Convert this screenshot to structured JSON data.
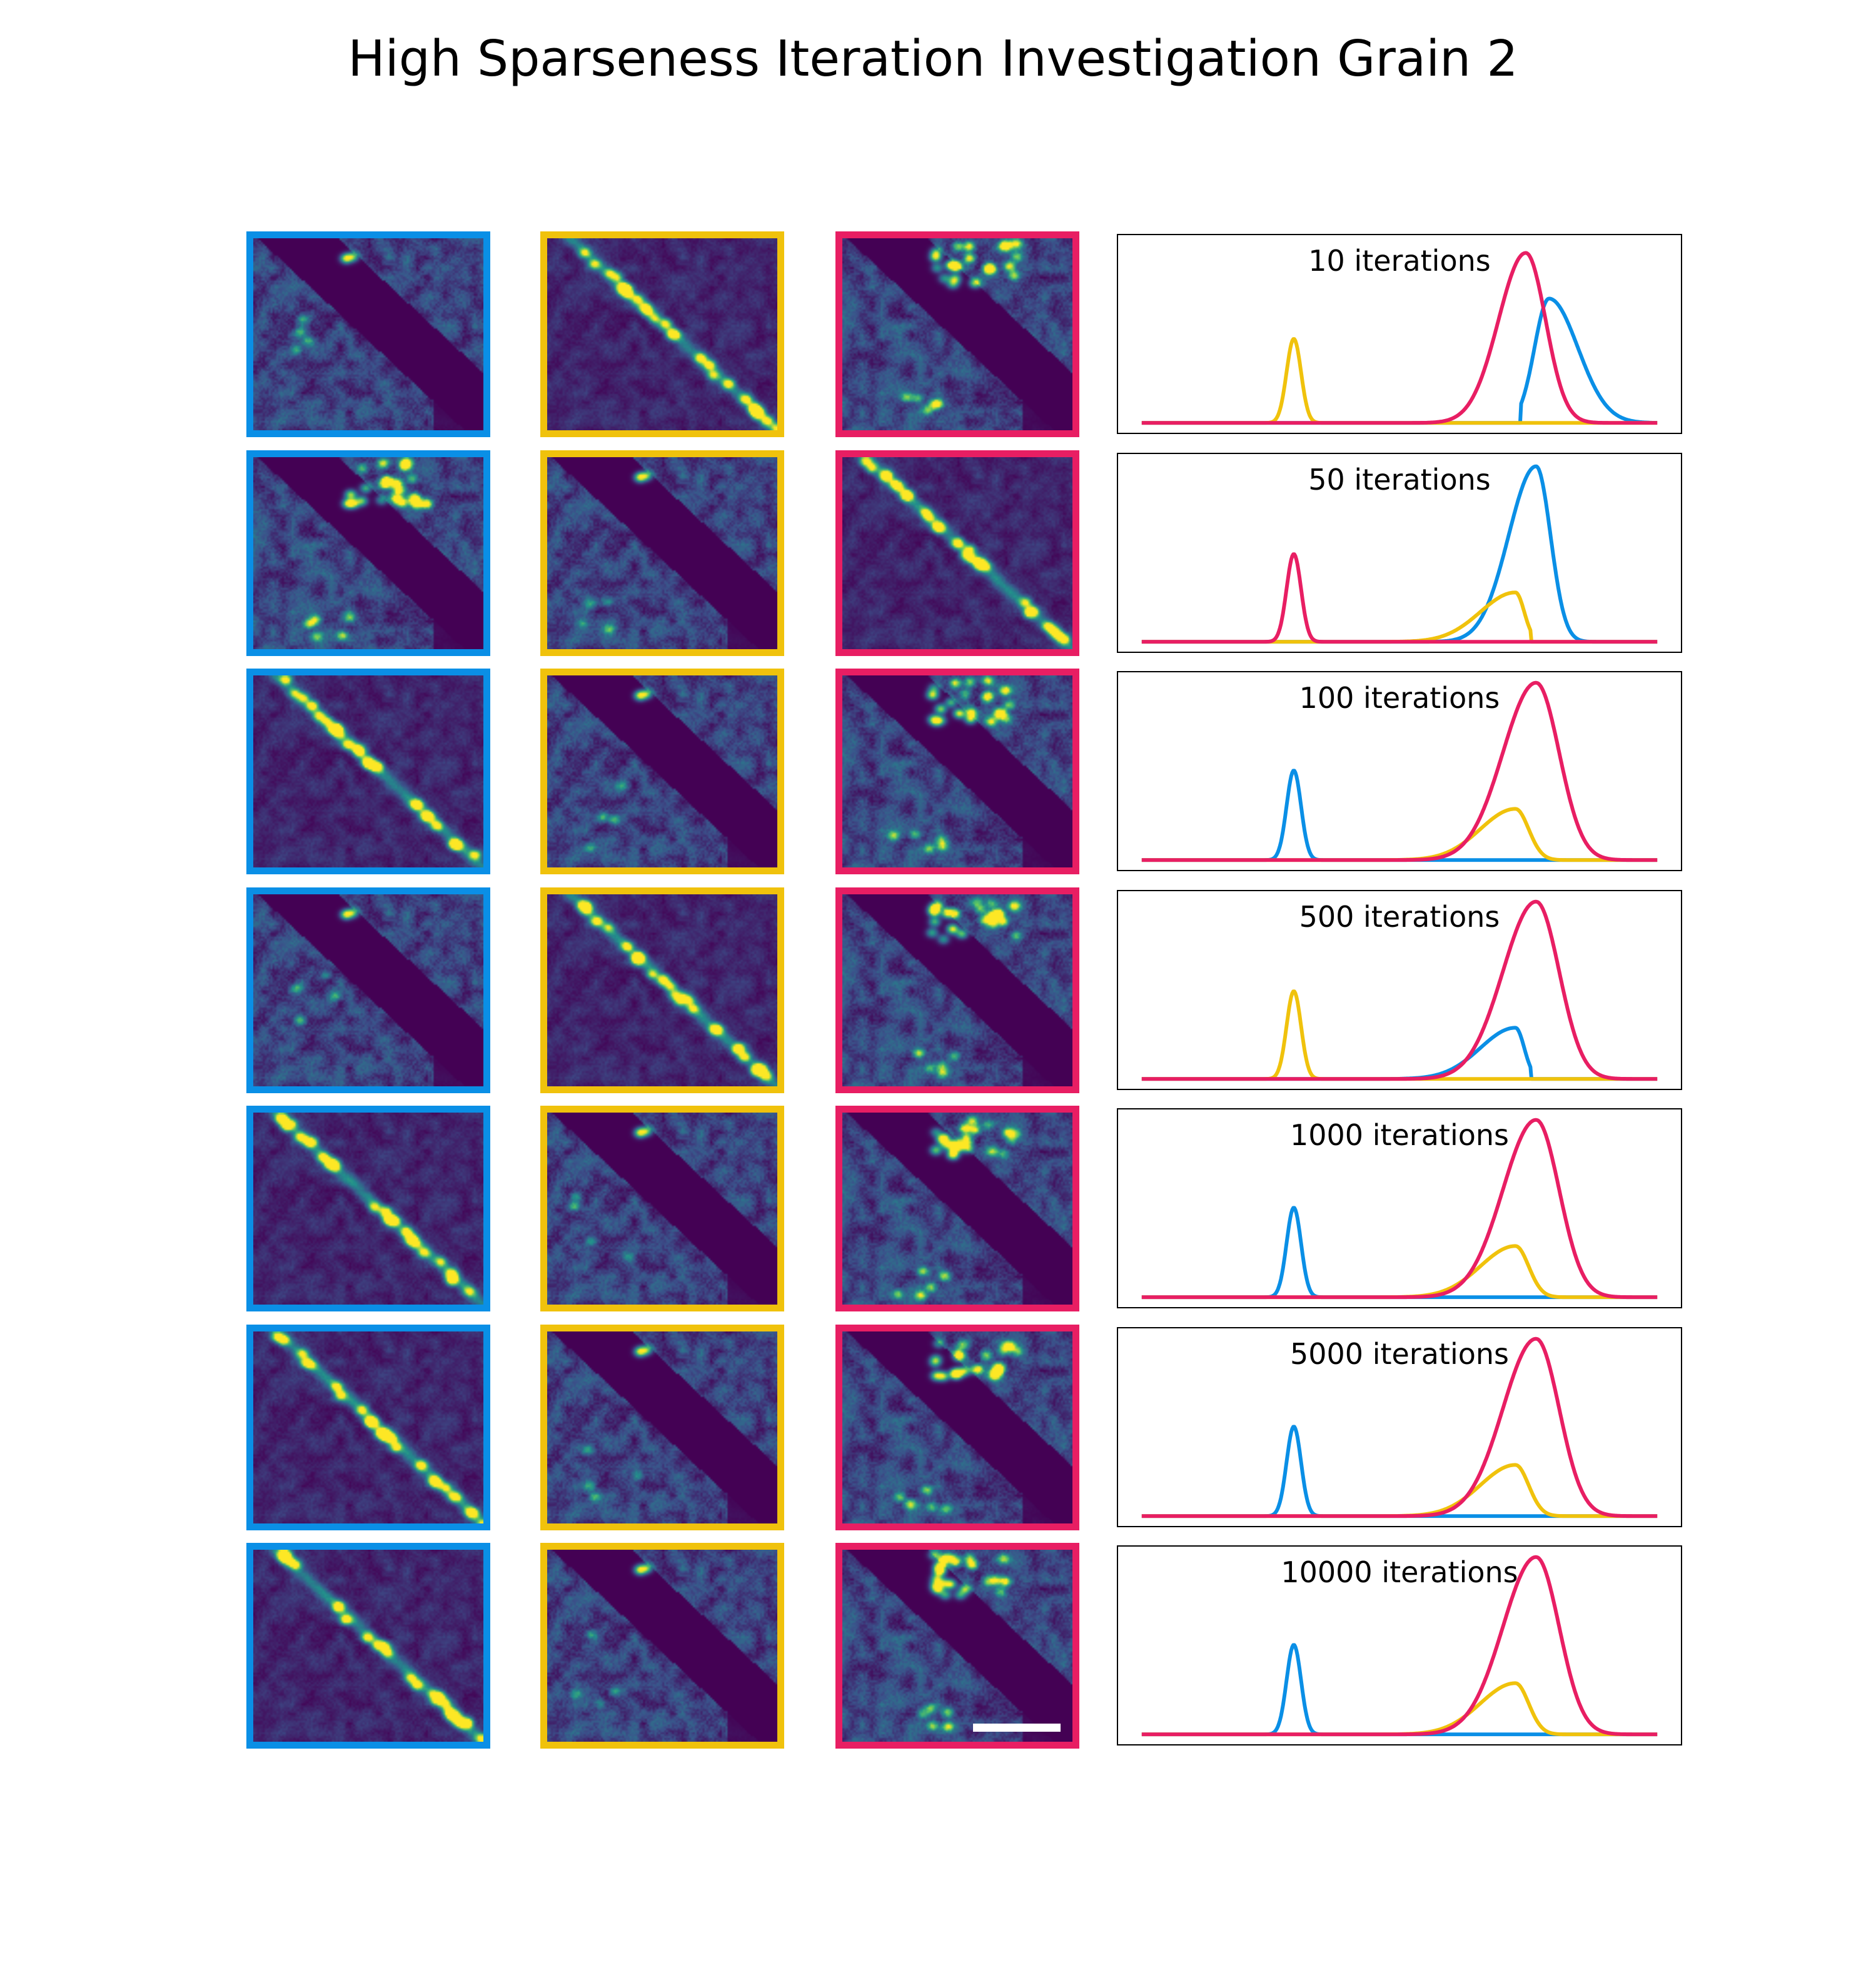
{
  "title": "High Sparseness Iteration Investigation Grain 2",
  "colors": {
    "blue": "#0a8fe6",
    "yellow": "#f0c20c",
    "pink": "#e81e63",
    "map_background": "#440154"
  },
  "map_columns": [
    {
      "column": "1",
      "border_color": "#0a8fe6"
    },
    {
      "column": "2",
      "border_color": "#f0c20c"
    },
    {
      "column": "3",
      "border_color": "#e81e63"
    }
  ],
  "map_patterns": {
    "A": "upper-right bright cluster with dark diagonal band",
    "B": "bright diagonal boundary line",
    "C": "single bright spot near top with dark diagonal band"
  },
  "scale_bar": {
    "shown_in_row": 7,
    "shown_in_column": 3
  },
  "chart_data": {
    "type": "line",
    "xlim": [
      0,
      1
    ],
    "ylim": [
      0,
      1
    ],
    "axes_ticks": "none",
    "grid": false,
    "legend": "none",
    "panels": [
      {
        "label": "10 iterations",
        "maps": [
          "C",
          "B",
          "A"
        ],
        "series": [
          {
            "color": "#0a8fe6",
            "peaks": [
              {
                "center": 0.79,
                "height": 0.68,
                "width": 0.028,
                "tail_right": 2.0,
                "cut_left": 0.735
              }
            ]
          },
          {
            "color": "#f0c20c",
            "peaks": [
              {
                "center": 0.295,
                "height": 0.46,
                "width": 0.014
              }
            ]
          },
          {
            "color": "#e81e63",
            "peaks": [
              {
                "center": 0.745,
                "height": 0.93,
                "width": 0.024,
                "tail_left": 2.2,
                "tail_right": 1.6
              }
            ]
          }
        ]
      },
      {
        "label": "50 iterations",
        "maps": [
          "A",
          "C",
          "B"
        ],
        "series": [
          {
            "color": "#0a8fe6",
            "peaks": [
              {
                "center": 0.765,
                "height": 0.96,
                "width": 0.028,
                "tail_left": 1.9
              }
            ]
          },
          {
            "color": "#f0c20c",
            "peaks": [
              {
                "center": 0.725,
                "height": 0.27,
                "width": 0.017,
                "tail_left": 4.0,
                "cut_right": 0.755
              }
            ]
          },
          {
            "color": "#e81e63",
            "peaks": [
              {
                "center": 0.295,
                "height": 0.48,
                "width": 0.014
              }
            ]
          }
        ]
      },
      {
        "label": "100 iterations",
        "maps": [
          "B",
          "C",
          "A"
        ],
        "series": [
          {
            "color": "#0a8fe6",
            "peaks": [
              {
                "center": 0.295,
                "height": 0.49,
                "width": 0.014
              }
            ]
          },
          {
            "color": "#f0c20c",
            "peaks": [
              {
                "center": 0.725,
                "height": 0.28,
                "width": 0.017,
                "tail_left": 4.0,
                "tail_right": 1.5
              }
            ]
          },
          {
            "color": "#e81e63",
            "peaks": [
              {
                "center": 0.765,
                "height": 0.97,
                "width": 0.028,
                "tail_left": 2.3,
                "tail_right": 1.6
              }
            ]
          }
        ]
      },
      {
        "label": "500 iterations",
        "maps": [
          "C",
          "B",
          "A"
        ],
        "series": [
          {
            "color": "#0a8fe6",
            "peaks": [
              {
                "center": 0.725,
                "height": 0.28,
                "width": 0.017,
                "tail_left": 4.0,
                "cut_right": 0.755
              }
            ]
          },
          {
            "color": "#f0c20c",
            "peaks": [
              {
                "center": 0.295,
                "height": 0.48,
                "width": 0.014
              }
            ]
          },
          {
            "color": "#e81e63",
            "peaks": [
              {
                "center": 0.765,
                "height": 0.97,
                "width": 0.028,
                "tail_left": 2.3,
                "tail_right": 1.6
              }
            ]
          }
        ]
      },
      {
        "label": "1000 iterations",
        "maps": [
          "B",
          "C",
          "A"
        ],
        "series": [
          {
            "color": "#0a8fe6",
            "peaks": [
              {
                "center": 0.295,
                "height": 0.49,
                "width": 0.014
              }
            ]
          },
          {
            "color": "#f0c20c",
            "peaks": [
              {
                "center": 0.725,
                "height": 0.28,
                "width": 0.017,
                "tail_left": 4.0,
                "tail_right": 1.5
              }
            ]
          },
          {
            "color": "#e81e63",
            "peaks": [
              {
                "center": 0.765,
                "height": 0.97,
                "width": 0.028,
                "tail_left": 2.3,
                "tail_right": 1.6
              }
            ]
          }
        ]
      },
      {
        "label": "5000 iterations",
        "maps": [
          "B",
          "C",
          "A"
        ],
        "series": [
          {
            "color": "#0a8fe6",
            "peaks": [
              {
                "center": 0.295,
                "height": 0.49,
                "width": 0.014
              }
            ]
          },
          {
            "color": "#f0c20c",
            "peaks": [
              {
                "center": 0.725,
                "height": 0.28,
                "width": 0.017,
                "tail_left": 4.0,
                "tail_right": 1.5
              }
            ]
          },
          {
            "color": "#e81e63",
            "peaks": [
              {
                "center": 0.765,
                "height": 0.97,
                "width": 0.028,
                "tail_left": 2.3,
                "tail_right": 1.6
              }
            ]
          }
        ]
      },
      {
        "label": "10000 iterations",
        "maps": [
          "B",
          "C",
          "A"
        ],
        "series": [
          {
            "color": "#0a8fe6",
            "peaks": [
              {
                "center": 0.295,
                "height": 0.49,
                "width": 0.014
              }
            ]
          },
          {
            "color": "#f0c20c",
            "peaks": [
              {
                "center": 0.725,
                "height": 0.28,
                "width": 0.017,
                "tail_left": 4.0,
                "tail_right": 1.5
              }
            ]
          },
          {
            "color": "#e81e63",
            "peaks": [
              {
                "center": 0.765,
                "height": 0.97,
                "width": 0.028,
                "tail_left": 2.3,
                "tail_right": 1.6
              }
            ]
          }
        ]
      }
    ]
  }
}
